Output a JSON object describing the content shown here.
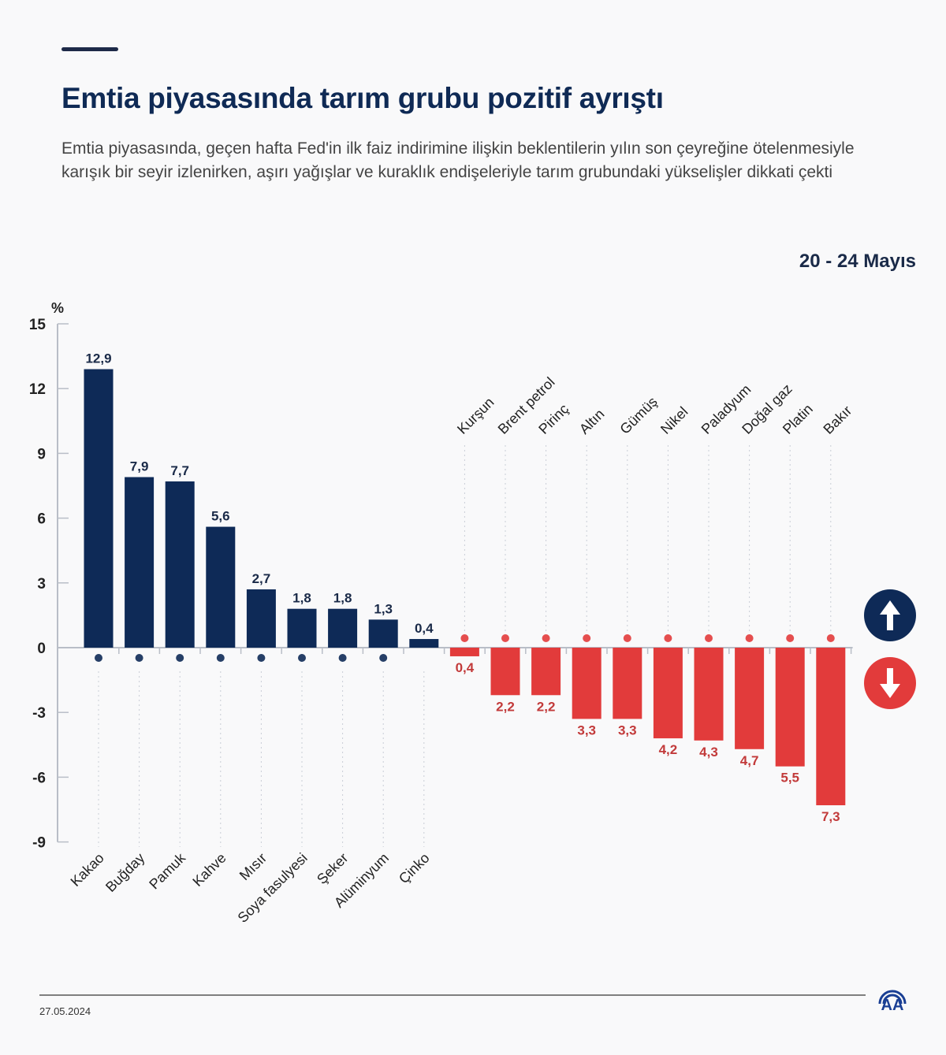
{
  "header": {
    "title": "Emtia piyasasında tarım grubu pozitif ayrıştı",
    "subtitle": "Emtia piyasasında, geçen hafta Fed'in ilk faiz indirimine ilişkin beklentilerin yılın son çeyreğine ötelenmesiyle karışık bir seyir izlenirken, aşırı yağışlar ve kuraklık endişeleriyle tarım grubundaki yükselişler dikkati çekti",
    "date_range": "20 - 24 Mayıs"
  },
  "legend": {
    "up": {
      "icon": "arrow-up-icon",
      "color": "#0e2a57"
    },
    "down": {
      "icon": "arrow-down-icon",
      "color": "#e23b3b"
    }
  },
  "footer": {
    "date": "27.05.2024",
    "logo": "AA"
  },
  "colors": {
    "positive": "#0e2a57",
    "negative": "#e23b3b",
    "axis": "#b9bec7",
    "title": "#0f2a55"
  },
  "chart_data": {
    "type": "bar",
    "title": "Emtia piyasasında tarım grubu pozitif ayrıştı",
    "ylabel": "%",
    "xlabel": "",
    "ylim": [
      -9,
      15
    ],
    "yticks": [
      15,
      12,
      9,
      6,
      3,
      0,
      -3,
      -6,
      -9
    ],
    "grid": false,
    "legend": "right",
    "categories": [
      "Kakao",
      "Buğday",
      "Pamuk",
      "Kahve",
      "Mısır",
      "Soya fasulyesi",
      "Şeker",
      "Alüminyum",
      "Çinko",
      "Kurşun",
      "Brent petrol",
      "Pirinç",
      "Altın",
      "Gümüş",
      "Nikel",
      "Paladyum",
      "Doğal gaz",
      "Platin",
      "Bakır"
    ],
    "values": [
      12.9,
      7.9,
      7.7,
      5.6,
      2.7,
      1.8,
      1.8,
      1.3,
      0.4,
      -0.4,
      -2.2,
      -2.2,
      -3.3,
      -3.3,
      -4.2,
      -4.3,
      -4.7,
      -5.5,
      -7.3
    ],
    "labels": [
      "12,9",
      "7,9",
      "7,7",
      "5,6",
      "2,7",
      "1,8",
      "1,8",
      "1,3",
      "0,4",
      "0,4",
      "2,2",
      "2,2",
      "3,3",
      "3,3",
      "4,2",
      "4,3",
      "4,7",
      "5,5",
      "7,3"
    ],
    "icons": [
      "cocoa-icon",
      "wheat-sack-icon",
      "cotton-icon",
      "coffee-bean-icon",
      "corn-icon",
      "soybean-icon",
      "sugar-bag-icon",
      "metal-ingot-icon",
      "",
      "metal-ingot-icon",
      "oil-barrel-icon",
      "rice-sack-icon",
      "metal-ingot-icon",
      "metal-ingot-icon",
      "metal-ingot-icon",
      "metal-ingot-icon",
      "flame-icon",
      "metal-ingot-icon",
      "metal-ingot-icon"
    ]
  }
}
